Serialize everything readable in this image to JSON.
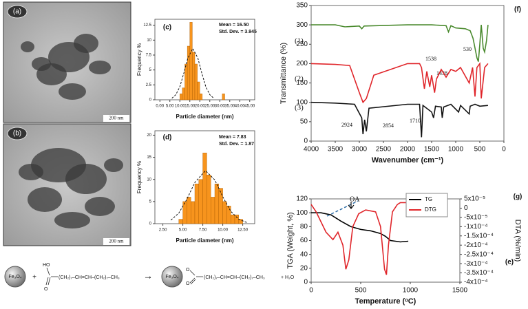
{
  "images": [
    {
      "label": "(a)",
      "scale": "200 nm"
    },
    {
      "label": "(b)",
      "scale": "200 nm"
    }
  ],
  "scheme": {
    "label": "(e)",
    "core_left": "Fe₃O₄",
    "plus": "+",
    "hydroxyl": "HO",
    "carbonyl_left": "O",
    "chain_left": "(CH₂)₇–CH=CH–(CH₂)₇–CH₃",
    "arrow": "→",
    "core_right": "Fe₃O₄",
    "ester_top": "O",
    "ester_bottom": "O",
    "chain_right": "(CH₂)₇–CH=CH–(CH₂)₇–CH₃",
    "product": "+ H₂O"
  },
  "chart_data": [
    {
      "type": "histogram",
      "panel_label": "(c)",
      "x_label": "Particle diameter (nm)",
      "y_label": "Frequency %",
      "annotations": [
        "Mean = 16.50",
        "Std. Dev. = 3.945"
      ],
      "color": "#f7941d",
      "bins": [
        10,
        11.25,
        12.5,
        13.75,
        15,
        16.25,
        17.5,
        18.75,
        20,
        21.25,
        22.5,
        23.75,
        25,
        26.25,
        27.5,
        28.75,
        30,
        31.25,
        32.5
      ],
      "values": [
        1,
        2,
        6,
        9,
        13,
        8,
        6,
        3,
        1,
        0,
        0,
        0,
        0,
        0,
        0,
        0,
        0,
        1
      ],
      "fit": {
        "x": [
          6,
          8,
          10,
          12,
          14,
          16.5,
          19,
          21,
          23,
          25,
          27
        ],
        "y": [
          0.25,
          0.85,
          2.2,
          4.5,
          7.0,
          8.6,
          7.0,
          4.5,
          2.2,
          0.85,
          0.25
        ]
      },
      "xlim": [
        -2.5,
        47.5
      ],
      "ylim": [
        0,
        13.5
      ],
      "xticks": [
        {
          "value": 0,
          "label": "0.00"
        },
        {
          "value": 5,
          "label": "5.00"
        },
        {
          "value": 10,
          "label": "10.00"
        },
        {
          "value": 15,
          "label": "15.00"
        },
        {
          "value": 20,
          "label": "20.00"
        },
        {
          "value": 25,
          "label": "25.00"
        },
        {
          "value": 30,
          "label": "30.00"
        },
        {
          "value": 35,
          "label": "35.00"
        },
        {
          "value": 40,
          "label": "40.00"
        },
        {
          "value": 45,
          "label": "45.00"
        }
      ],
      "yticks": [
        0,
        2.5,
        5,
        7.5,
        10,
        12.5
      ]
    },
    {
      "type": "histogram",
      "panel_label": "(d)",
      "x_label": "Particle diameter (nm)",
      "y_label": "Frequency %",
      "annotations": [
        "Mean = 7.83",
        "Std. Dev. = 1.87"
      ],
      "color": "#f7941d",
      "bins": [
        4.5,
        5,
        5.5,
        6,
        6.5,
        7,
        7.5,
        8,
        8.5,
        9,
        9.5,
        10,
        10.5,
        11,
        11.5,
        12,
        12.5
      ],
      "values": [
        1,
        5,
        6,
        5,
        9,
        10,
        16,
        11,
        6,
        9,
        8,
        5,
        4,
        2,
        2,
        1
      ],
      "fit": {
        "x": [
          3.5,
          4.5,
          5.5,
          6.5,
          7.83,
          9,
          10,
          11,
          12,
          13
        ],
        "y": [
          0.8,
          2.4,
          5.5,
          9.3,
          12,
          9.9,
          6.1,
          2.8,
          1.0,
          0.26
        ]
      },
      "xlim": [
        1.5,
        14
      ],
      "ylim": [
        0,
        21
      ],
      "xticks": [
        {
          "value": 2.5,
          "label": "2.50"
        },
        {
          "value": 5,
          "label": "5.00"
        },
        {
          "value": 7.5,
          "label": "7.50"
        },
        {
          "value": 10,
          "label": "10.00"
        },
        {
          "value": 12.5,
          "label": "12.50"
        }
      ],
      "yticks": [
        0,
        5,
        10,
        15,
        20
      ]
    },
    {
      "type": "line",
      "panel_label": "(f)",
      "x_label": "Wavenumber (cm⁻¹)",
      "y_label": "Transmittance (%)",
      "annotations": [
        "530",
        "1538",
        "1438",
        "2924",
        "2854",
        "1710"
      ],
      "series": [
        {
          "name": "(1)",
          "color": "#4a8a2e",
          "x": [
            4000,
            3500,
            3300,
            3000,
            2950,
            2900,
            2000,
            1500,
            1200,
            1150,
            1100,
            1000,
            800,
            700,
            640,
            600,
            560,
            530,
            500,
            470,
            430,
            400,
            360,
            330
          ],
          "values": [
            300,
            300,
            295,
            297,
            290,
            297,
            300,
            300,
            298,
            282,
            298,
            292,
            290,
            285,
            265,
            240,
            215,
            205,
            250,
            300,
            240,
            230,
            260,
            300
          ]
        },
        {
          "name": "(2)",
          "color": "#e0252a",
          "x": [
            4000,
            3500,
            3200,
            3000,
            2924,
            2854,
            2700,
            2000,
            1750,
            1710,
            1650,
            1600,
            1538,
            1500,
            1438,
            1400,
            1300,
            1200,
            1100,
            1000,
            900,
            720,
            650,
            600,
            560,
            500,
            470,
            400,
            330
          ],
          "values": [
            200,
            198,
            195,
            125,
            100,
            110,
            170,
            200,
            200,
            190,
            135,
            180,
            140,
            170,
            125,
            160,
            185,
            165,
            185,
            180,
            190,
            150,
            190,
            115,
            190,
            200,
            110,
            190,
            200
          ]
        },
        {
          "name": "(3)",
          "color": "#111111",
          "x": [
            4000,
            3500,
            3100,
            2950,
            2924,
            2890,
            2854,
            2800,
            2000,
            1750,
            1710,
            1680,
            1500,
            1460,
            1420,
            1300,
            1280,
            1250,
            1100,
            940,
            900,
            720,
            700,
            600,
            500,
            330
          ],
          "values": [
            100,
            98,
            95,
            60,
            18,
            55,
            25,
            85,
            95,
            95,
            10,
            92,
            75,
            60,
            90,
            88,
            60,
            88,
            95,
            75,
            92,
            70,
            90,
            95,
            90,
            92
          ]
        }
      ],
      "xlim": [
        4000,
        0
      ],
      "ylim": [
        0,
        350
      ],
      "xticks": [
        4000,
        3500,
        3000,
        2500,
        2000,
        1500,
        1000,
        500,
        0
      ],
      "yticks": [
        0,
        50,
        100,
        150,
        200,
        250,
        300,
        350
      ]
    },
    {
      "type": "line",
      "panel_label": "(g)",
      "x_label": "Temperature (ᵒC)",
      "y_label": "TGA (Weight, %)",
      "y2_label": "DTA (%/min)",
      "annotations": [
        "OA"
      ],
      "legend": "top-right",
      "series": [
        {
          "name": "TG",
          "color": "#000000",
          "x": [
            0,
            100,
            200,
            300,
            400,
            500,
            600,
            700,
            750,
            800,
            900,
            980
          ],
          "values": [
            100,
            100,
            97,
            88,
            80,
            76,
            74,
            70,
            66,
            60,
            58,
            59
          ]
        },
        {
          "name": "DTG",
          "color": "#e0252a",
          "axis": "y2",
          "x": [
            0,
            50,
            150,
            220,
            270,
            320,
            350,
            380,
            420,
            480,
            550,
            650,
            700,
            740,
            760,
            780,
            820,
            870,
            900,
            980
          ],
          "values": [
            2e-05,
            -2e-05,
            -0.00013,
            -0.00017,
            -0.00013,
            -0.0002,
            -0.00033,
            -0.00028,
            -0.0001,
            -3e-05,
            -1e-05,
            -2e-05,
            -0.0001,
            -0.00033,
            -0.00036,
            -0.0002,
            -2e-05,
            2e-05,
            3e-05,
            3e-05
          ]
        }
      ],
      "xlim": [
        0,
        1500
      ],
      "ylim": [
        0,
        120
      ],
      "y2lim": [
        -0.0004,
        5e-05
      ],
      "xticks": [
        0,
        500,
        1000,
        1500
      ],
      "yticks": [
        0,
        20,
        40,
        60,
        80,
        100,
        120
      ],
      "y2ticks": [
        {
          "value": 5e-05,
          "label": "5x10⁻⁵"
        },
        0,
        {
          "value": -5e-05,
          "label": "-5x10⁻⁵"
        },
        {
          "value": -0.0001,
          "label": "-1x10⁻⁴"
        },
        {
          "value": -0.00015,
          "label": "-1.5x10⁻⁴"
        },
        {
          "value": -0.0002,
          "label": "-2x10⁻⁴"
        },
        {
          "value": -0.00025,
          "label": "-2.5x10⁻⁴"
        },
        {
          "value": -0.0003,
          "label": "-3x10⁻⁴"
        },
        {
          "value": -0.00035,
          "label": "-3.5x10⁻⁴"
        },
        {
          "value": -0.0004,
          "label": "-4x10⁻⁴"
        }
      ]
    }
  ]
}
